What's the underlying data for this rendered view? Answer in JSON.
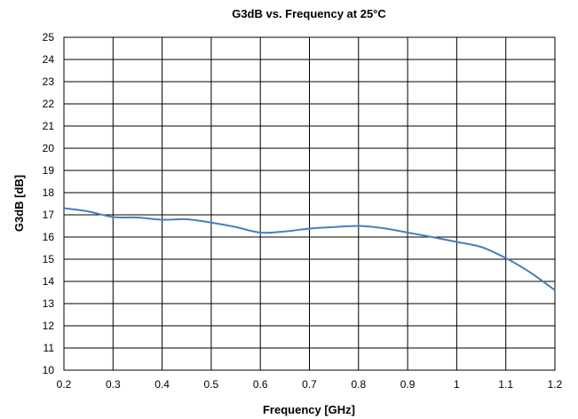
{
  "chart_data": {
    "type": "line",
    "title": "G3dB vs. Frequency at 25°C",
    "xlabel": "Frequency [GHz]",
    "ylabel": "G3dB [dB]",
    "xlim": [
      0.2,
      1.2
    ],
    "ylim": [
      10,
      25
    ],
    "xticks": [
      "0.2",
      "0.3",
      "0.4",
      "0.5",
      "0.6",
      "0.7",
      "0.8",
      "0.9",
      "1",
      "1.1",
      "1.2"
    ],
    "yticks": [
      "10",
      "11",
      "12",
      "13",
      "14",
      "15",
      "16",
      "17",
      "18",
      "19",
      "20",
      "21",
      "22",
      "23",
      "24",
      "25"
    ],
    "grid": true,
    "colors": {
      "series": "#4a7ebb",
      "grid": "#000000"
    },
    "series": [
      {
        "x": [
          0.2,
          0.25,
          0.3,
          0.35,
          0.4,
          0.45,
          0.5,
          0.55,
          0.6,
          0.65,
          0.7,
          0.75,
          0.8,
          0.85,
          0.9,
          0.95,
          1.0,
          1.05,
          1.1,
          1.15,
          1.2
        ],
        "values": [
          17.3,
          17.15,
          16.9,
          16.88,
          16.78,
          16.8,
          16.65,
          16.45,
          16.2,
          16.25,
          16.38,
          16.45,
          16.5,
          16.4,
          16.2,
          16.0,
          15.78,
          15.55,
          15.05,
          14.4,
          13.6
        ]
      }
    ]
  }
}
